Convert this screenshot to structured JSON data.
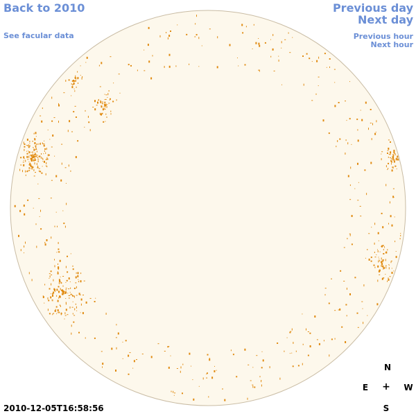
{
  "nav": {
    "back_label": "Back to 2010",
    "facular_label": "See facular data",
    "prev_day_label": "Previous day",
    "next_day_label": "Next day",
    "prev_hour_label": "Previous hour",
    "next_hour_label": "Next hour"
  },
  "timestamp": "2010-12-05T16:58:56",
  "compass": {
    "north": "N",
    "south": "S",
    "east": "E",
    "west": "W",
    "center": "+"
  },
  "colors": {
    "link": "#6b8fd6",
    "disk_fill": "#fdf8ec",
    "disk_stroke": "#c9bca4",
    "facula": "#e08a10"
  }
}
